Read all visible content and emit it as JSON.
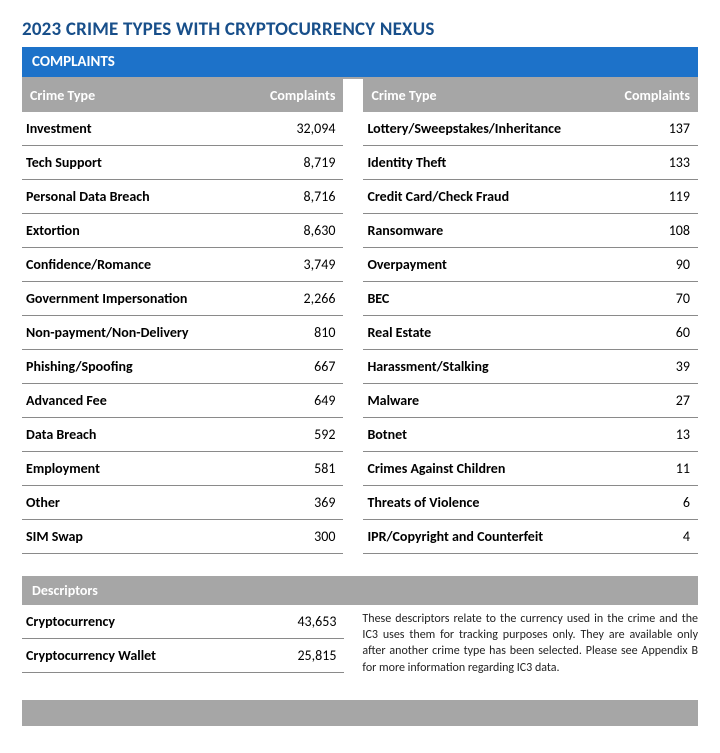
{
  "title": "2023 CRIME TYPES WITH CRYPTOCURRENCY NEXUS",
  "banner": "COMPLAINTS",
  "headers": {
    "crimeType": "Crime Type",
    "complaints": "Complaints"
  },
  "leftRows": [
    {
      "type": "Investment",
      "count": "32,094"
    },
    {
      "type": "Tech Support",
      "count": "8,719"
    },
    {
      "type": "Personal Data Breach",
      "count": "8,716"
    },
    {
      "type": "Extortion",
      "count": "8,630"
    },
    {
      "type": "Confidence/Romance",
      "count": "3,749"
    },
    {
      "type": "Government Impersonation",
      "count": "2,266"
    },
    {
      "type": "Non-payment/Non-Delivery",
      "count": "810"
    },
    {
      "type": "Phishing/Spoofing",
      "count": "667"
    },
    {
      "type": "Advanced Fee",
      "count": "649"
    },
    {
      "type": "Data Breach",
      "count": "592"
    },
    {
      "type": "Employment",
      "count": "581"
    },
    {
      "type": "Other",
      "count": "369"
    },
    {
      "type": "SIM Swap",
      "count": "300"
    }
  ],
  "rightRows": [
    {
      "type": "Lottery/Sweepstakes/Inheritance",
      "count": "137"
    },
    {
      "type": "Identity Theft",
      "count": "133"
    },
    {
      "type": "Credit Card/Check Fraud",
      "count": "119"
    },
    {
      "type": "Ransomware",
      "count": "108"
    },
    {
      "type": "Overpayment",
      "count": "90"
    },
    {
      "type": "BEC",
      "count": "70"
    },
    {
      "type": "Real Estate",
      "count": "60"
    },
    {
      "type": "Harassment/Stalking",
      "count": "39"
    },
    {
      "type": "Malware",
      "count": "27"
    },
    {
      "type": "Botnet",
      "count": "13"
    },
    {
      "type": "Crimes Against Children",
      "count": "11"
    },
    {
      "type": "Threats of Violence",
      "count": "6"
    },
    {
      "type": "IPR/Copyright and Counterfeit",
      "count": "4"
    }
  ],
  "descriptors": {
    "header": "Descriptors",
    "rows": [
      {
        "label": "Cryptocurrency",
        "count": "43,653"
      },
      {
        "label": "Cryptocurrency Wallet",
        "count": "25,815"
      }
    ],
    "note": "These descriptors relate to the currency used in the crime and the IC3 uses them for tracking purposes only. They are available only after another crime type has been selected. Please see Appendix B for more information regarding IC3 data."
  }
}
